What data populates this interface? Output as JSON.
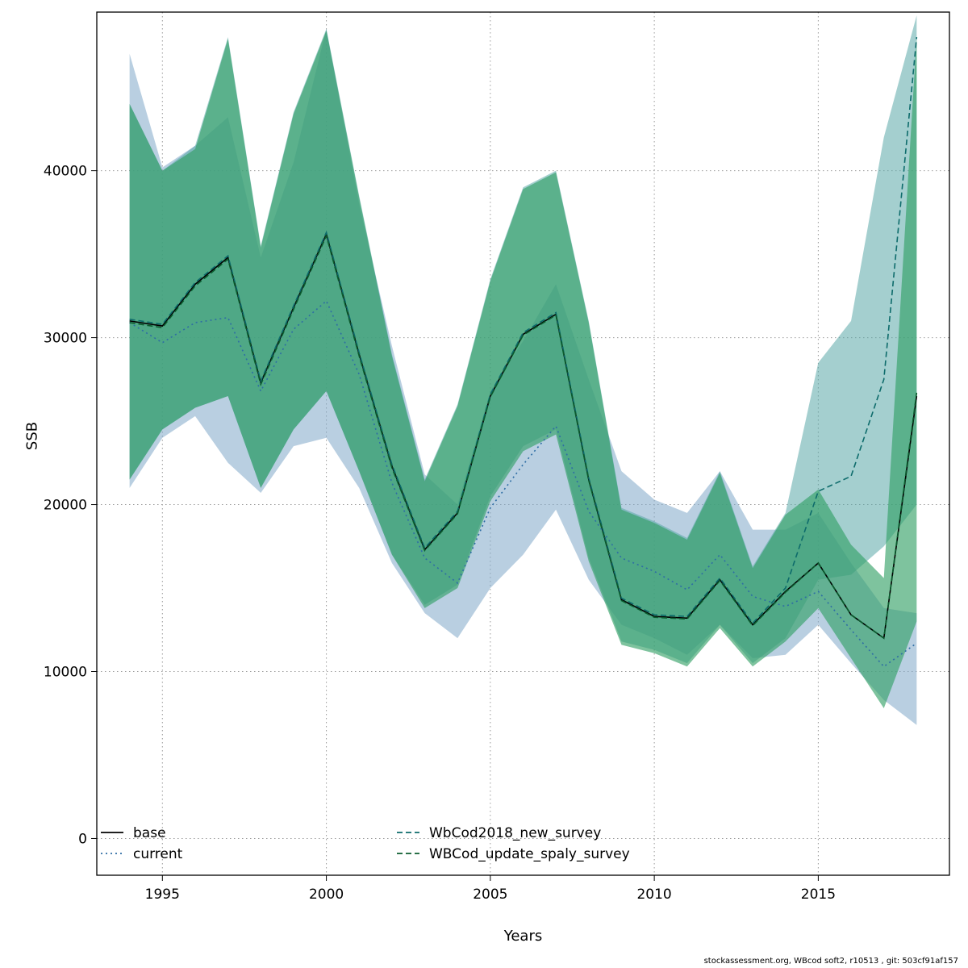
{
  "footer": "stockassessment.org, WBcod soft2, r10513 , git: 503cf91af157",
  "chart_data": {
    "type": "line",
    "title": "",
    "xlabel": "Years",
    "ylabel": "SSB",
    "xlim": [
      1993,
      2019
    ],
    "ylim": [
      -2200,
      49500
    ],
    "xticks": [
      1995,
      2000,
      2005,
      2010,
      2015
    ],
    "yticks": [
      0,
      10000,
      20000,
      30000,
      40000
    ],
    "grid": true,
    "legend": {
      "position": "bottom-left",
      "columns": 2
    },
    "years": [
      1994,
      1995,
      1996,
      1997,
      1998,
      1999,
      2000,
      2001,
      2002,
      2003,
      2004,
      2005,
      2006,
      2007,
      2008,
      2009,
      2010,
      2011,
      2012,
      2013,
      2014,
      2015,
      2016,
      2017,
      2018
    ],
    "series": [
      {
        "name": "base",
        "color": "#000000",
        "dash": "solid",
        "values": [
          31000,
          30700,
          33200,
          34800,
          27300,
          31800,
          36200,
          29000,
          22300,
          17300,
          19500,
          26500,
          30200,
          31400,
          21500,
          14300,
          13300,
          13200,
          15500,
          12800,
          14800,
          16500,
          13400,
          12000,
          26500
        ],
        "band": null
      },
      {
        "name": "current",
        "color": "#2e6da4",
        "dash": "dotted",
        "values": [
          30900,
          29700,
          30900,
          31200,
          26800,
          30500,
          32200,
          27800,
          21300,
          16800,
          15300,
          19800,
          22400,
          24700,
          19600,
          16800,
          16000,
          14900,
          17000,
          14500,
          13900,
          14800,
          12500,
          10300,
          11700
        ],
        "band": {
          "fill": "#7fa8c9",
          "opacity": 0.55,
          "lo": [
            21000,
            24000,
            25300,
            22500,
            20700,
            23500,
            24000,
            21000,
            16500,
            13500,
            12000,
            15000,
            17000,
            19700,
            15500,
            12800,
            12000,
            11000,
            12800,
            10800,
            11000,
            12800,
            10500,
            8300,
            6800
          ],
          "hi": [
            47000,
            40200,
            41500,
            43200,
            34800,
            40500,
            48500,
            38000,
            29500,
            21800,
            20000,
            26800,
            29800,
            33200,
            27500,
            22000,
            20300,
            19500,
            22000,
            18500,
            18500,
            19500,
            16500,
            13800,
            13500
          ]
        }
      },
      {
        "name": "WbCod2018_new_survey",
        "color": "#0d6b6b",
        "dash": "dashed",
        "values": [
          31100,
          30800,
          33300,
          34900,
          27400,
          31900,
          36300,
          29100,
          22400,
          17400,
          19600,
          26600,
          30300,
          31500,
          21600,
          14400,
          13400,
          13300,
          15600,
          12900,
          15000,
          20800,
          21700,
          27500,
          48000
        ],
        "band": {
          "fill": "#5aa7a7",
          "opacity": 0.55,
          "lo": [
            21500,
            24500,
            25800,
            26500,
            21000,
            24500,
            26800,
            22000,
            17000,
            14000,
            15200,
            20500,
            23500,
            24500,
            16800,
            11800,
            11300,
            10500,
            12800,
            10500,
            12000,
            15500,
            15800,
            17500,
            20000
          ],
          "hi": [
            44000,
            40000,
            41500,
            48000,
            35500,
            43500,
            48500,
            38500,
            29000,
            21500,
            26000,
            33500,
            39000,
            40000,
            31000,
            19800,
            19000,
            18000,
            22000,
            16300,
            19500,
            28500,
            31000,
            42000,
            49300
          ]
        }
      },
      {
        "name": "WBCod_update_spaly_survey",
        "color": "#0b5c2e",
        "dash": "dashed",
        "values": [
          30900,
          30600,
          33100,
          34700,
          27200,
          31700,
          36100,
          28900,
          22200,
          17250,
          19450,
          26450,
          30150,
          31350,
          21450,
          14250,
          13250,
          13150,
          15450,
          12750,
          14750,
          16500,
          13400,
          12000,
          26700
        ],
        "band": {
          "fill": "#2f9e63",
          "opacity": 0.62,
          "lo": [
            21500,
            24500,
            25800,
            26500,
            21000,
            24500,
            26800,
            22000,
            17000,
            13800,
            15000,
            20200,
            23200,
            24200,
            16600,
            11600,
            11100,
            10300,
            12600,
            10300,
            11800,
            13800,
            10800,
            7800,
            13000
          ],
          "hi": [
            44000,
            40000,
            41300,
            47900,
            35400,
            43400,
            48400,
            38400,
            28900,
            21400,
            25900,
            33400,
            38900,
            39900,
            30900,
            19700,
            18900,
            17900,
            21900,
            16200,
            19400,
            20900,
            17600,
            15600,
            48000
          ]
        }
      }
    ]
  }
}
